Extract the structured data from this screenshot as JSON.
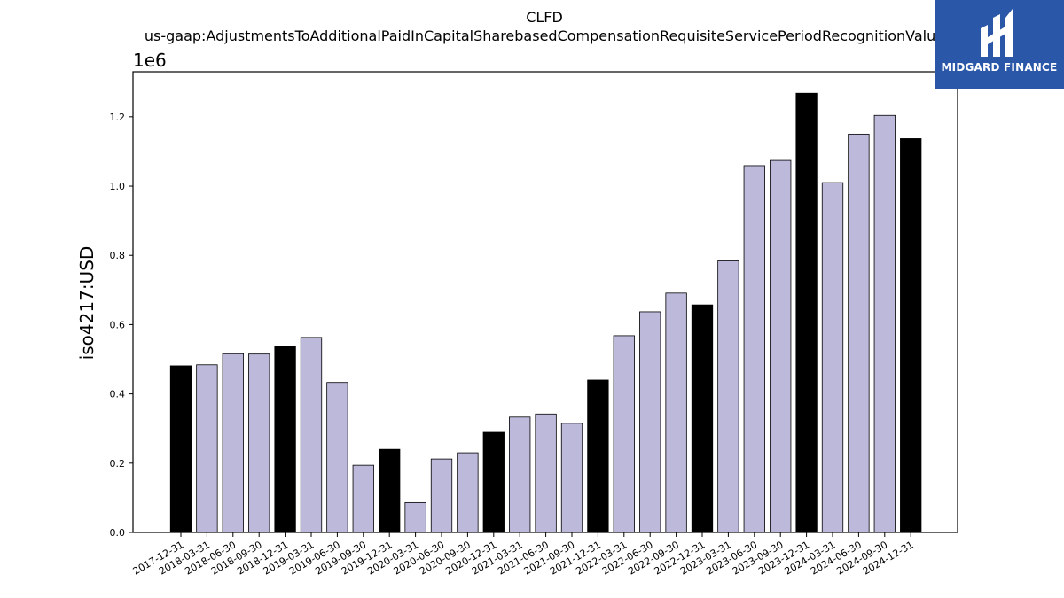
{
  "chart_data": {
    "type": "bar",
    "title": "CLFD",
    "subtitle": "us-gaap:AdjustmentsToAdditionalPaidInCapitalSharebasedCompensationRequisiteServicePeriodRecognitionValue",
    "ylabel": "iso4217:USD",
    "xlabel": "",
    "y_multiplier_label": "1e6",
    "ylim": [
      0,
      1.33
    ],
    "yticks": [
      "0.0",
      "0.2",
      "0.4",
      "0.6",
      "0.8",
      "1.0",
      "1.2"
    ],
    "categories": [
      "2017-12-31",
      "2018-03-31",
      "2018-06-30",
      "2018-09-30",
      "2018-12-31",
      "2019-03-31",
      "2019-06-30",
      "2019-09-30",
      "2019-12-31",
      "2020-03-31",
      "2020-06-30",
      "2020-09-30",
      "2020-12-31",
      "2021-03-31",
      "2021-06-30",
      "2021-09-30",
      "2021-12-31",
      "2022-03-31",
      "2022-06-30",
      "2022-09-30",
      "2022-12-31",
      "2023-03-31",
      "2023-06-30",
      "2023-09-30",
      "2023-12-31",
      "2024-03-31",
      "2024-06-30",
      "2024-09-30",
      "2024-12-31"
    ],
    "values": [
      0.481,
      0.484,
      0.516,
      0.515,
      0.538,
      0.563,
      0.433,
      0.194,
      0.24,
      0.086,
      0.212,
      0.23,
      0.289,
      0.333,
      0.342,
      0.315,
      0.44,
      0.568,
      0.637,
      0.691,
      0.657,
      0.784,
      1.059,
      1.074,
      1.268,
      1.01,
      1.15,
      1.204,
      1.137
    ],
    "annual": [
      true,
      false,
      false,
      false,
      true,
      false,
      false,
      false,
      true,
      false,
      false,
      false,
      true,
      false,
      false,
      false,
      true,
      false,
      false,
      false,
      true,
      false,
      false,
      false,
      true,
      false,
      false,
      false,
      true
    ],
    "colors": {
      "annual": "#000000",
      "quarterly": "#bcb9da",
      "edge": "#000000"
    },
    "grid": false,
    "legend": "none"
  },
  "logo": {
    "text": "MIDGARD FINANCE",
    "background": "#2a57a8"
  }
}
